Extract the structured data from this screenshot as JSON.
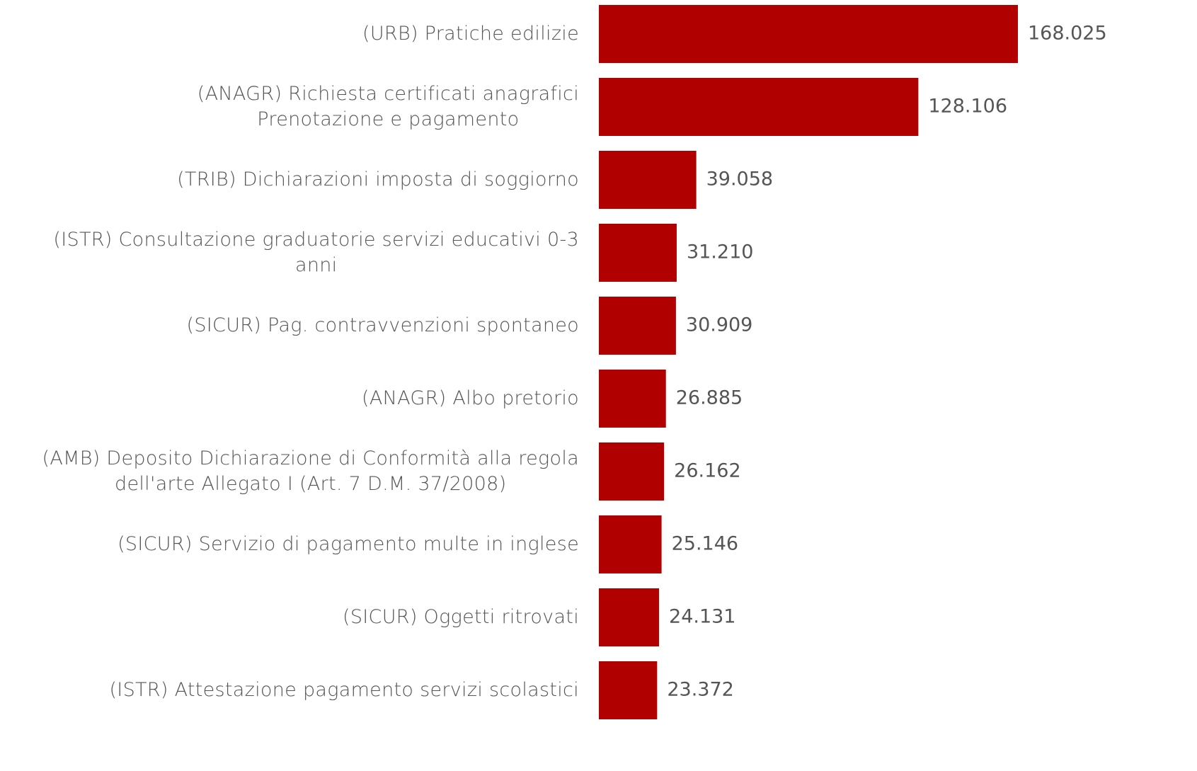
{
  "chart_data": {
    "type": "bar",
    "orientation": "horizontal",
    "color": "#b00000",
    "categories": [
      "(URB) Pratiche edilizie",
      "(ANAGR) Richiesta certificati anagrafici\nPrenotazione e pagamento",
      "(TRIB) Dichiarazioni imposta di soggiorno",
      "(ISTR) Consultazione graduatorie servizi educativi 0-3\nanni",
      "(SICUR) Pag. contravvenzioni spontaneo",
      "(ANAGR) Albo pretorio",
      "(AMB) Deposito Dichiarazione di Conformità alla regola\ndell'arte Allegato I (Art. 7 D.M. 37/2008)",
      "(SICUR) Servizio di pagamento multe in inglese",
      "(SICUR) Oggetti ritrovati",
      "(ISTR) Attestazione pagamento servizi scolastici"
    ],
    "values": [
      168025,
      128106,
      39058,
      31210,
      30909,
      26885,
      26162,
      25146,
      24131,
      23372
    ],
    "value_labels": [
      "168.025",
      "128.106",
      "39.058",
      "31.210",
      "30.909",
      "26.885",
      "26.162",
      "25.146",
      "24.131",
      "23.372"
    ]
  }
}
